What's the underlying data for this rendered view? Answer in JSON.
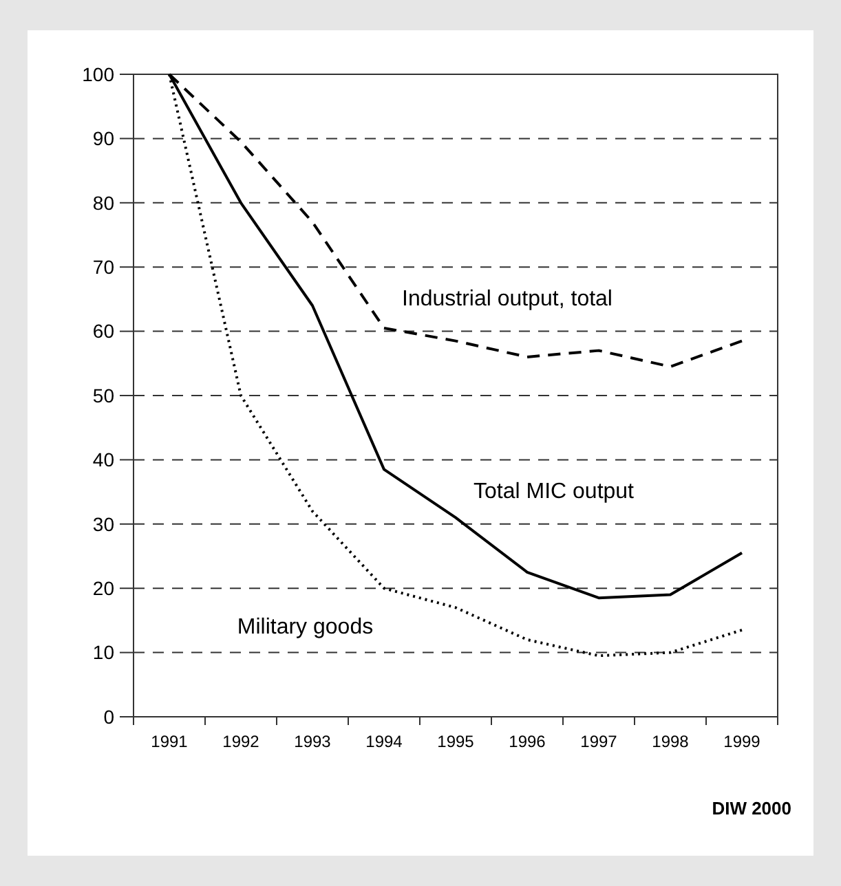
{
  "chart_data": {
    "type": "line",
    "categories": [
      "1991",
      "1992",
      "1993",
      "1994",
      "1995",
      "1996",
      "1997",
      "1998",
      "1999"
    ],
    "series": [
      {
        "name": "Industrial output, total",
        "color": "#000000",
        "line_style": "dashed",
        "values": [
          100,
          89.5,
          77,
          60.5,
          58.5,
          56,
          57,
          54.5,
          58.5
        ]
      },
      {
        "name": "Total MIC output",
        "color": "#000000",
        "line_style": "solid",
        "values": [
          100,
          80,
          64,
          38.5,
          31,
          22.5,
          18.5,
          19,
          25.5
        ]
      },
      {
        "name": "Military goods",
        "color": "#000000",
        "line_style": "dotted",
        "values": [
          100,
          50,
          32,
          20,
          17,
          12,
          9.5,
          10,
          13.5
        ]
      }
    ],
    "ylim": [
      0,
      100
    ],
    "yticks": [
      0,
      10,
      20,
      30,
      40,
      50,
      60,
      70,
      80,
      90,
      100
    ],
    "grid": "y",
    "legend": false,
    "marker": "none",
    "annotations": [
      "DIW 2000"
    ]
  }
}
